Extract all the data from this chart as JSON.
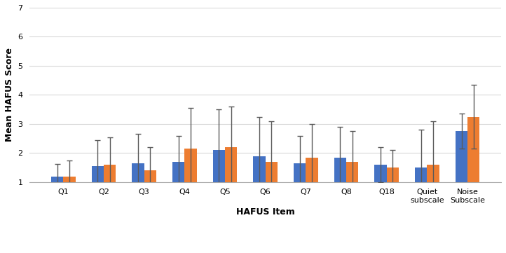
{
  "categories": [
    "Q1",
    "Q2",
    "Q3",
    "Q4",
    "Q5",
    "Q6",
    "Q7",
    "Q8",
    "Q18",
    "Quiet\nsubscale",
    "Noise\nSubscale"
  ],
  "normative_means": [
    1.2,
    1.55,
    1.65,
    1.7,
    2.1,
    1.9,
    1.65,
    1.85,
    1.6,
    1.5,
    2.75
  ],
  "cleaning_means": [
    1.2,
    1.6,
    1.4,
    2.15,
    2.2,
    1.7,
    1.85,
    1.7,
    1.5,
    1.6,
    3.25
  ],
  "normative_errors": [
    0.42,
    0.9,
    1.0,
    0.9,
    1.4,
    1.35,
    0.95,
    1.05,
    0.6,
    1.3,
    0.6
  ],
  "cleaning_errors": [
    0.55,
    0.95,
    0.8,
    1.4,
    1.4,
    1.4,
    1.15,
    1.05,
    0.6,
    1.5,
    1.1
  ],
  "normative_color": "#4472C4",
  "cleaning_color": "#ED7D31",
  "error_color": "#595959",
  "ylabel": "Mean HAFUS Score",
  "xlabel": "HAFUS Item",
  "ymin": 1,
  "ymax": 7,
  "yticks": [
    1,
    2,
    3,
    4,
    5,
    6,
    7
  ],
  "bar_width": 0.3,
  "background_color": "#FFFFFF",
  "grid_color": "#D9D9D9"
}
